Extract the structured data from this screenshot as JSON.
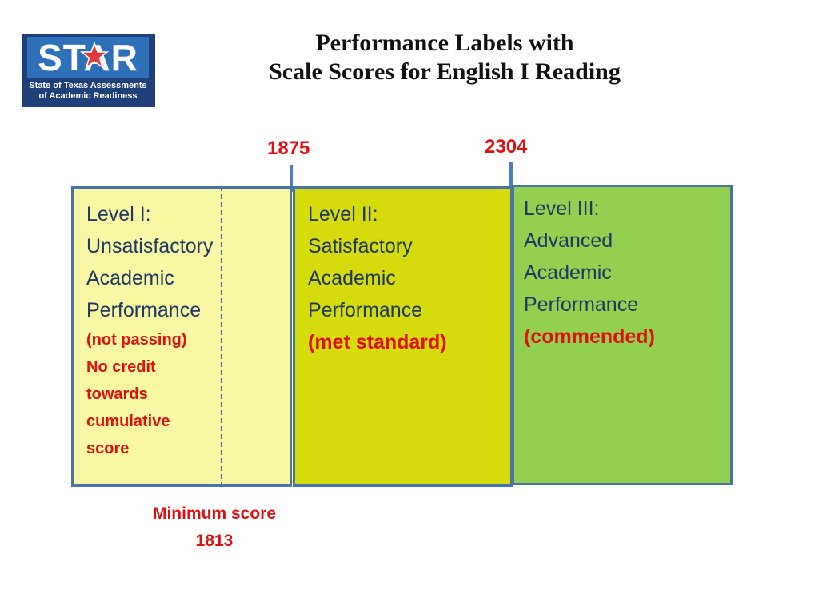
{
  "logo": {
    "title": "STAR",
    "subtitle_line1": "State of Texas Assessments",
    "subtitle_line2": "of Academic Readiness"
  },
  "title": {
    "line1": "Performance Labels with",
    "line2": "Scale Scores for English I Reading"
  },
  "markers": [
    {
      "label": "1875"
    },
    {
      "label": "2304"
    }
  ],
  "levels": [
    {
      "lines": [
        "Level I:",
        "Unsatisfactory",
        "Academic",
        "Performance"
      ],
      "notes": [
        "(not passing)",
        "No credit",
        "towards",
        "cumulative",
        "score"
      ]
    },
    {
      "lines": [
        "Level II:",
        "Satisfactory",
        "Academic",
        "Performance"
      ],
      "notes": [
        "(met standard)"
      ]
    },
    {
      "lines": [
        "Level III:",
        "Advanced",
        "Academic",
        "Performance"
      ],
      "notes": [
        "(commended)"
      ]
    }
  ],
  "minimum_score": {
    "label": "Minimum score",
    "value": "1813"
  },
  "colors": {
    "level1": "#f7f7a4",
    "level2": "#d6dc0c",
    "level3": "#92d050",
    "border": "#4a73a8",
    "text": "#1f3864",
    "accent": "#e01010"
  }
}
